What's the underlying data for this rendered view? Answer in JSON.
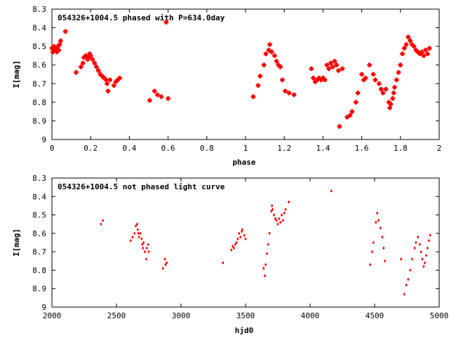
{
  "chart_data": [
    {
      "type": "scatter",
      "title": "054326+1004.5 phased with P=634.0day",
      "xlabel": "phase",
      "ylabel": "I[mag]",
      "xlim": [
        0,
        2
      ],
      "ylim": [
        8.3,
        9.0
      ],
      "y_inverted": true,
      "x_ticks": [
        0,
        0.2,
        0.4,
        0.6,
        0.8,
        1,
        1.2,
        1.4,
        1.6,
        1.8,
        2
      ],
      "x_tick_labels": [
        "0",
        "0.2",
        "0.4",
        "0.6",
        "0.8",
        "1",
        "1.2",
        "1.4",
        "1.6",
        "1.8",
        "2"
      ],
      "y_ticks": [
        8.3,
        8.4,
        8.5,
        8.6,
        8.7,
        8.8,
        8.9,
        9.0
      ],
      "y_tick_labels": [
        "8.3",
        "8.4",
        "8.5",
        "8.6",
        "8.7",
        "8.8",
        "8.9",
        "9"
      ],
      "grid": false,
      "marker_color": "#ff0000",
      "series": [
        {
          "points": [
            [
              0.0,
              8.51
            ],
            [
              0.005,
              8.53
            ],
            [
              0.01,
              8.5
            ],
            [
              0.015,
              8.52
            ],
            [
              0.02,
              8.51
            ],
            [
              0.025,
              8.53
            ],
            [
              0.03,
              8.5
            ],
            [
              0.035,
              8.52
            ],
            [
              0.04,
              8.49
            ],
            [
              0.045,
              8.47
            ],
            [
              0.07,
              8.42
            ],
            [
              0.125,
              8.64
            ],
            [
              0.15,
              8.61
            ],
            [
              0.16,
              8.59
            ],
            [
              0.165,
              8.56
            ],
            [
              0.175,
              8.55
            ],
            [
              0.185,
              8.57
            ],
            [
              0.19,
              8.56
            ],
            [
              0.195,
              8.54
            ],
            [
              0.2,
              8.55
            ],
            [
              0.21,
              8.57
            ],
            [
              0.22,
              8.59
            ],
            [
              0.23,
              8.61
            ],
            [
              0.24,
              8.63
            ],
            [
              0.25,
              8.65
            ],
            [
              0.26,
              8.66
            ],
            [
              0.27,
              8.67
            ],
            [
              0.28,
              8.68
            ],
            [
              0.285,
              8.7
            ],
            [
              0.29,
              8.74
            ],
            [
              0.3,
              8.68
            ],
            [
              0.32,
              8.71
            ],
            [
              0.33,
              8.69
            ],
            [
              0.34,
              8.68
            ],
            [
              0.35,
              8.67
            ],
            [
              0.505,
              8.79
            ],
            [
              0.53,
              8.74
            ],
            [
              0.545,
              8.76
            ],
            [
              0.565,
              8.77
            ],
            [
              0.59,
              8.37
            ],
            [
              0.6,
              8.78
            ],
            [
              1.04,
              8.77
            ],
            [
              1.065,
              8.71
            ],
            [
              1.075,
              8.66
            ],
            [
              1.095,
              8.6
            ],
            [
              1.105,
              8.54
            ],
            [
              1.12,
              8.52
            ],
            [
              1.125,
              8.49
            ],
            [
              1.135,
              8.53
            ],
            [
              1.15,
              8.55
            ],
            [
              1.16,
              8.58
            ],
            [
              1.17,
              8.6
            ],
            [
              1.18,
              8.61
            ],
            [
              1.19,
              8.68
            ],
            [
              1.205,
              8.74
            ],
            [
              1.225,
              8.75
            ],
            [
              1.25,
              8.76
            ],
            [
              1.34,
              8.62
            ],
            [
              1.35,
              8.67
            ],
            [
              1.36,
              8.69
            ],
            [
              1.37,
              8.68
            ],
            [
              1.38,
              8.67
            ],
            [
              1.39,
              8.68
            ],
            [
              1.4,
              8.67
            ],
            [
              1.41,
              8.68
            ],
            [
              1.42,
              8.6
            ],
            [
              1.43,
              8.62
            ],
            [
              1.44,
              8.59
            ],
            [
              1.45,
              8.61
            ],
            [
              1.46,
              8.58
            ],
            [
              1.47,
              8.6
            ],
            [
              1.48,
              8.63
            ],
            [
              1.485,
              8.93
            ],
            [
              1.5,
              8.62
            ],
            [
              1.525,
              8.88
            ],
            [
              1.54,
              8.87
            ],
            [
              1.55,
              8.85
            ],
            [
              1.57,
              8.8
            ],
            [
              1.58,
              8.75
            ],
            [
              1.6,
              8.65
            ],
            [
              1.61,
              8.68
            ],
            [
              1.62,
              8.67
            ],
            [
              1.64,
              8.6
            ],
            [
              1.66,
              8.65
            ],
            [
              1.67,
              8.68
            ],
            [
              1.69,
              8.7
            ],
            [
              1.7,
              8.73
            ],
            [
              1.71,
              8.75
            ],
            [
              1.725,
              8.73
            ],
            [
              1.74,
              8.8
            ],
            [
              1.745,
              8.83
            ],
            [
              1.75,
              8.81
            ],
            [
              1.76,
              8.78
            ],
            [
              1.765,
              8.75
            ],
            [
              1.77,
              8.72
            ],
            [
              1.78,
              8.68
            ],
            [
              1.79,
              8.64
            ],
            [
              1.8,
              8.6
            ],
            [
              1.81,
              8.54
            ],
            [
              1.82,
              8.51
            ],
            [
              1.83,
              8.49
            ],
            [
              1.84,
              8.45
            ],
            [
              1.85,
              8.47
            ],
            [
              1.86,
              8.49
            ],
            [
              1.87,
              8.5
            ],
            [
              1.88,
              8.52
            ],
            [
              1.89,
              8.53
            ],
            [
              1.9,
              8.54
            ],
            [
              1.91,
              8.53
            ],
            [
              1.92,
              8.55
            ],
            [
              1.93,
              8.52
            ],
            [
              1.94,
              8.54
            ],
            [
              1.95,
              8.51
            ]
          ]
        }
      ]
    },
    {
      "type": "scatter",
      "title": "054326+1004.5 not phased light curve",
      "xlabel": "hjd0",
      "ylabel": "I[mag]",
      "xlim": [
        2000,
        5000
      ],
      "ylim": [
        8.3,
        9.0
      ],
      "y_inverted": true,
      "x_ticks": [
        2000,
        2500,
        3000,
        3500,
        4000,
        4500,
        5000
      ],
      "x_tick_labels": [
        "2000",
        "2500",
        "3000",
        "3500",
        "4000",
        "4500",
        "5000"
      ],
      "y_ticks": [
        8.3,
        8.4,
        8.5,
        8.6,
        8.7,
        8.8,
        8.9,
        9.0
      ],
      "y_tick_labels": [
        "8.3",
        "8.4",
        "8.5",
        "8.6",
        "8.7",
        "8.8",
        "8.9",
        "9"
      ],
      "grid": false,
      "marker_color": "#ff0000",
      "series": [
        {
          "points": [
            [
              2380,
              8.55
            ],
            [
              2395,
              8.53
            ],
            [
              2610,
              8.64
            ],
            [
              2625,
              8.62
            ],
            [
              2640,
              8.6
            ],
            [
              2650,
              8.56
            ],
            [
              2660,
              8.55
            ],
            [
              2665,
              8.58
            ],
            [
              2670,
              8.6
            ],
            [
              2675,
              8.62
            ],
            [
              2685,
              8.6
            ],
            [
              2695,
              8.63
            ],
            [
              2700,
              8.66
            ],
            [
              2705,
              8.68
            ],
            [
              2710,
              8.65
            ],
            [
              2720,
              8.7
            ],
            [
              2730,
              8.74
            ],
            [
              2735,
              8.68
            ],
            [
              2745,
              8.66
            ],
            [
              2750,
              8.7
            ],
            [
              2860,
              8.79
            ],
            [
              2875,
              8.74
            ],
            [
              2880,
              8.77
            ],
            [
              2890,
              8.76
            ],
            [
              3325,
              8.76
            ],
            [
              3390,
              8.69
            ],
            [
              3400,
              8.67
            ],
            [
              3410,
              8.68
            ],
            [
              3420,
              8.66
            ],
            [
              3430,
              8.65
            ],
            [
              3440,
              8.63
            ],
            [
              3450,
              8.6
            ],
            [
              3460,
              8.62
            ],
            [
              3470,
              8.59
            ],
            [
              3475,
              8.58
            ],
            [
              3490,
              8.61
            ],
            [
              3500,
              8.63
            ],
            [
              3640,
              8.79
            ],
            [
              3650,
              8.83
            ],
            [
              3655,
              8.77
            ],
            [
              3665,
              8.71
            ],
            [
              3675,
              8.66
            ],
            [
              3685,
              8.6
            ],
            [
              3700,
              8.48
            ],
            [
              3705,
              8.45
            ],
            [
              3710,
              8.47
            ],
            [
              3720,
              8.5
            ],
            [
              3730,
              8.52
            ],
            [
              3740,
              8.53
            ],
            [
              3750,
              8.55
            ],
            [
              3760,
              8.52
            ],
            [
              3770,
              8.54
            ],
            [
              3780,
              8.5
            ],
            [
              3790,
              8.53
            ],
            [
              3800,
              8.49
            ],
            [
              3810,
              8.47
            ],
            [
              3835,
              8.43
            ],
            [
              4165,
              8.37
            ],
            [
              4465,
              8.77
            ],
            [
              4480,
              8.7
            ],
            [
              4490,
              8.65
            ],
            [
              4510,
              8.54
            ],
            [
              4520,
              8.49
            ],
            [
              4530,
              8.53
            ],
            [
              4545,
              8.57
            ],
            [
              4560,
              8.62
            ],
            [
              4570,
              8.68
            ],
            [
              4580,
              8.75
            ],
            [
              4705,
              8.74
            ],
            [
              4730,
              8.93
            ],
            [
              4745,
              8.88
            ],
            [
              4760,
              8.85
            ],
            [
              4775,
              8.8
            ],
            [
              4790,
              8.74
            ],
            [
              4810,
              8.68
            ],
            [
              4820,
              8.65
            ],
            [
              4835,
              8.62
            ],
            [
              4850,
              8.66
            ],
            [
              4860,
              8.7
            ],
            [
              4870,
              8.74
            ],
            [
              4880,
              8.78
            ],
            [
              4890,
              8.76
            ],
            [
              4900,
              8.72
            ],
            [
              4910,
              8.68
            ],
            [
              4920,
              8.64
            ],
            [
              4930,
              8.61
            ]
          ]
        }
      ]
    }
  ]
}
